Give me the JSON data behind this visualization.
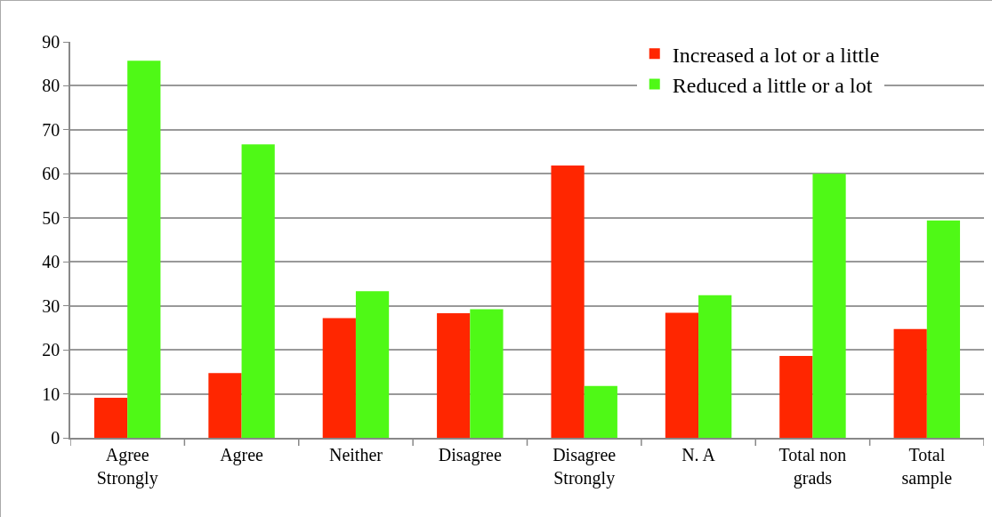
{
  "chart_data": {
    "type": "bar",
    "categories": [
      "Agree Strongly",
      "Agree",
      "Neither",
      "Disagree",
      "Disagree Strongly",
      "N. A",
      "Total non grads",
      "Total sample"
    ],
    "series": [
      {
        "name": "Increased a lot or a little",
        "color": "#ff2600",
        "values": [
          9.1,
          14.7,
          27.2,
          28.3,
          61.9,
          28.4,
          18.6,
          24.7
        ]
      },
      {
        "name": "Reduced a little or a lot",
        "color": "#4ff916",
        "values": [
          85.7,
          66.7,
          33.3,
          29.2,
          11.8,
          32.4,
          60.0,
          49.4
        ]
      }
    ],
    "ylim": [
      0,
      90
    ],
    "yticks": [
      0,
      10,
      20,
      30,
      40,
      50,
      60,
      70,
      80,
      90
    ],
    "grid": "y",
    "legend": "top right"
  }
}
